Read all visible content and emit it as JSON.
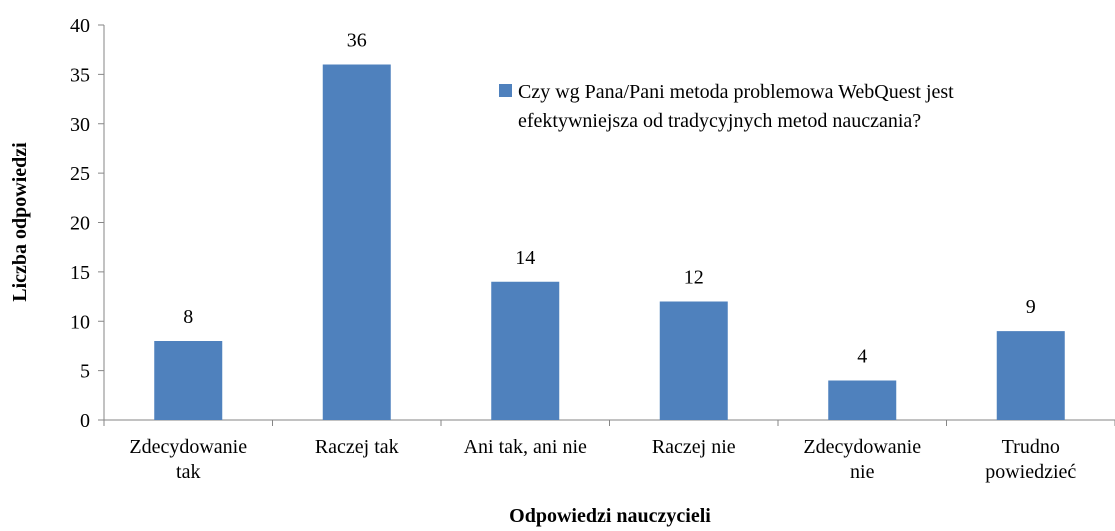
{
  "chart_data": {
    "type": "bar",
    "xlabel": "Odpowiedzi nauczycieli",
    "ylabel": "Liczba odpowiedzi",
    "categories": [
      "Zdecydowanie\ntak",
      "Raczej tak",
      "Ani tak, ani nie",
      "Raczej nie",
      "Zdecydowanie\nnie",
      "Trudno\npowiedzieć"
    ],
    "series": [
      {
        "name": "Czy wg Pana/Pani metoda problemowa WebQuest jest\nefektywniejsza od tradycyjnych metod nauczania?",
        "color": "#4f81bd",
        "values": [
          8,
          36,
          14,
          12,
          4,
          9
        ]
      }
    ],
    "ylim": [
      0,
      40
    ],
    "yticks": [
      0,
      5,
      10,
      15,
      20,
      25,
      30,
      35,
      40
    ],
    "grid": false,
    "legend": "upper right",
    "data_labels": true
  }
}
